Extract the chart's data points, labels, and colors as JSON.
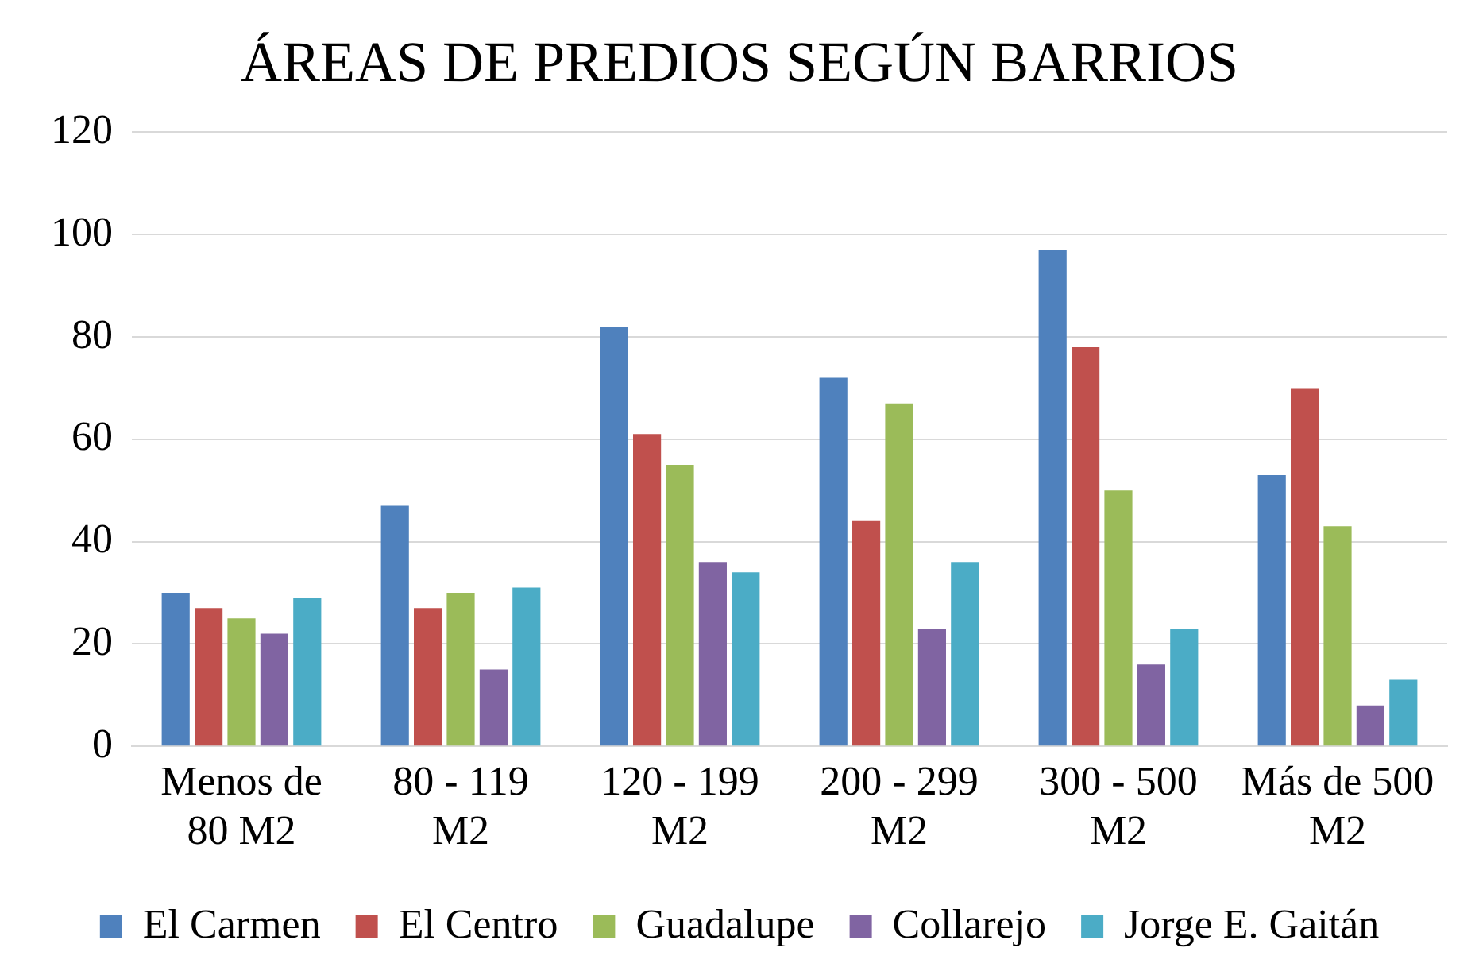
{
  "chart_data": {
    "type": "bar",
    "title": "ÁREAS DE PREDIOS SEGÚN BARRIOS",
    "categories": [
      "Menos de 80 M2",
      "80 - 119 M2",
      "120 - 199 M2",
      "200 - 299 M2",
      "300 - 500 M2",
      "Más de 500 M2"
    ],
    "series": [
      {
        "name": "El Carmen",
        "color": "#4f81bd",
        "values": [
          30,
          47,
          82,
          72,
          97,
          53
        ]
      },
      {
        "name": "El Centro",
        "color": "#c0504d",
        "values": [
          27,
          27,
          61,
          44,
          78,
          70
        ]
      },
      {
        "name": "Guadalupe",
        "color": "#9bbb59",
        "values": [
          25,
          30,
          55,
          67,
          50,
          43
        ]
      },
      {
        "name": "Collarejo",
        "color": "#8064a2",
        "values": [
          22,
          15,
          36,
          23,
          16,
          8
        ]
      },
      {
        "name": "Jorge E. Gaitán",
        "color": "#4bacc6",
        "values": [
          29,
          31,
          34,
          36,
          23,
          13
        ]
      }
    ],
    "ylim": [
      0,
      120
    ],
    "yticks": [
      0,
      20,
      40,
      60,
      80,
      100,
      120
    ],
    "grid": "y",
    "legend": "bottom"
  }
}
